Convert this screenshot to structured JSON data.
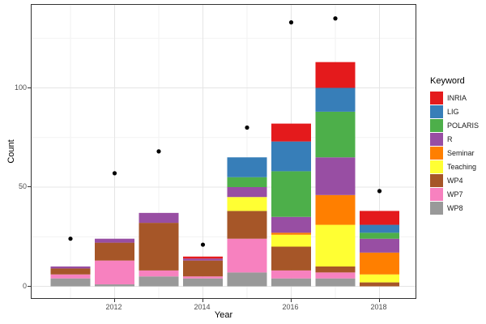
{
  "figure": {
    "xlabel": "Year",
    "ylabel": "Count",
    "legend_title": "Keyword"
  },
  "chart_data": {
    "type": "bar",
    "subtype": "stacked-bars-with-points",
    "x": [
      2011,
      2012,
      2013,
      2014,
      2015,
      2016,
      2017,
      2018
    ],
    "series": [
      {
        "name": "INRIA",
        "color": "#E41A1C",
        "values": [
          0,
          0,
          0,
          1,
          0,
          9,
          13,
          7
        ]
      },
      {
        "name": "LIG",
        "color": "#377EB8",
        "values": [
          0,
          0,
          0,
          0,
          10,
          15,
          12,
          4
        ]
      },
      {
        "name": "POLARIS",
        "color": "#4DAF4A",
        "values": [
          0,
          0,
          0,
          0,
          5,
          23,
          23,
          3
        ]
      },
      {
        "name": "R",
        "color": "#984EA3",
        "values": [
          1,
          2,
          5,
          1,
          5,
          8,
          19,
          7
        ]
      },
      {
        "name": "Seminar",
        "color": "#FF7F00",
        "values": [
          0,
          0,
          0,
          0,
          0,
          1,
          15,
          11
        ]
      },
      {
        "name": "Teaching",
        "color": "#FFFF33",
        "values": [
          0,
          0,
          0,
          0,
          7,
          6,
          21,
          4
        ]
      },
      {
        "name": "WP4",
        "color": "#A65628",
        "values": [
          3,
          9,
          24,
          8,
          14,
          12,
          3,
          2
        ]
      },
      {
        "name": "WP7",
        "color": "#F781BF",
        "values": [
          2,
          12,
          3,
          1,
          17,
          4,
          3,
          0
        ]
      },
      {
        "name": "WP8",
        "color": "#999999",
        "values": [
          4,
          1,
          5,
          4,
          7,
          4,
          4,
          0
        ]
      }
    ],
    "stack_order_bottom_to_top": [
      "WP8",
      "WP7",
      "WP4",
      "Teaching",
      "Seminar",
      "R",
      "POLARIS",
      "LIG",
      "INRIA"
    ],
    "stack_totals": [
      10,
      24,
      37,
      15,
      65,
      82,
      113,
      38
    ],
    "points": {
      "name": "total-points",
      "color": "#000000",
      "values": [
        24,
        57,
        68,
        21,
        80,
        133,
        135,
        48
      ]
    },
    "title": "",
    "xlabel": "Year",
    "ylabel": "Count",
    "ylim": [
      -7,
      142
    ],
    "x_major_ticks": [
      2012,
      2014,
      2016,
      2018
    ],
    "x_tick_labels": [
      "2012",
      "2014",
      "2016",
      "2018"
    ],
    "x_minor_years": [
      2011,
      2013,
      2015,
      2017
    ],
    "y_major_ticks": [
      0,
      50,
      100
    ],
    "y_tick_labels": [
      "0",
      "50",
      "100"
    ],
    "y_minor_ticks": [
      25,
      75,
      125
    ],
    "grid": "on",
    "legend_position": "right",
    "colors": {
      "major_grid": "#e5e5e5",
      "minor_grid": "#f2f2f2",
      "panel_border": "#333333",
      "tick_text": "#4d4d4d",
      "point": "#000000"
    }
  }
}
